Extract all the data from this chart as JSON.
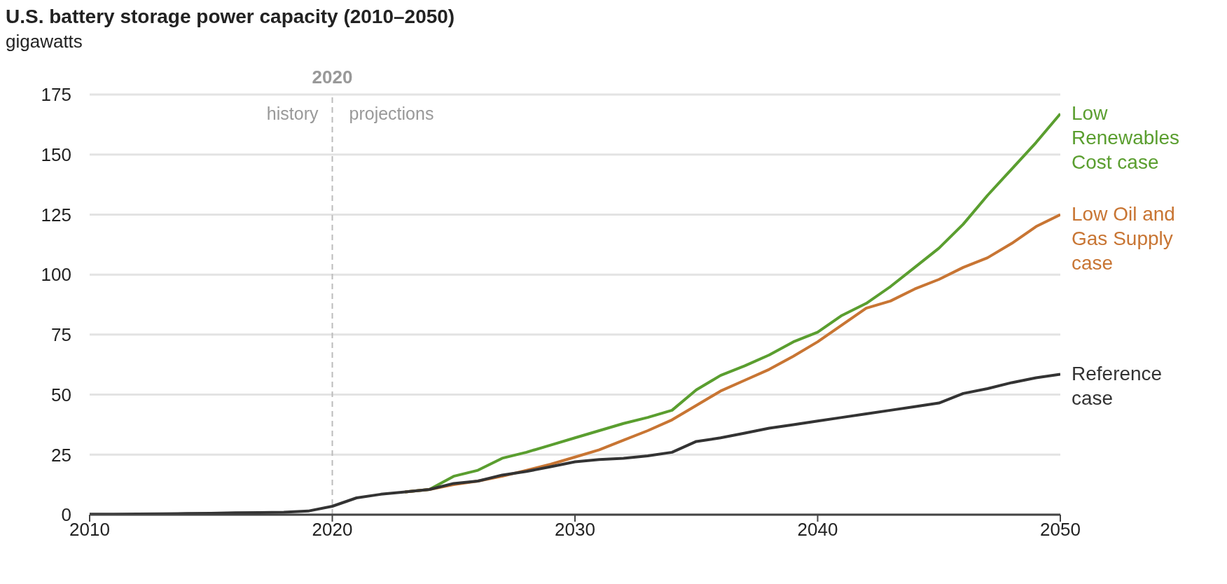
{
  "chart_data": {
    "type": "line",
    "title": "U.S. battery storage power capacity (2010–2050)",
    "ylabel": "gigawatts",
    "x": [
      2010,
      2011,
      2012,
      2013,
      2014,
      2015,
      2016,
      2017,
      2018,
      2019,
      2020,
      2021,
      2022,
      2023,
      2024,
      2025,
      2026,
      2027,
      2028,
      2029,
      2030,
      2031,
      2032,
      2033,
      2034,
      2035,
      2036,
      2037,
      2038,
      2039,
      2040,
      2041,
      2042,
      2043,
      2044,
      2045,
      2046,
      2047,
      2048,
      2049,
      2050
    ],
    "series": [
      {
        "name": "Low Renewables Cost case",
        "color": "#5a9e2f",
        "values": [
          null,
          null,
          null,
          null,
          null,
          null,
          null,
          null,
          null,
          null,
          null,
          null,
          null,
          9.5,
          10.5,
          16,
          18.5,
          23.5,
          26,
          29,
          32,
          35,
          38,
          40.5,
          43.5,
          52,
          58,
          62,
          66.5,
          72,
          76,
          83,
          88,
          95,
          103,
          111,
          121,
          133,
          144,
          155,
          167
        ]
      },
      {
        "name": "Low Oil and Gas Supply case",
        "color": "#c87533",
        "values": [
          null,
          null,
          null,
          null,
          null,
          null,
          null,
          null,
          null,
          null,
          null,
          null,
          null,
          9.5,
          10.5,
          12.5,
          14,
          16,
          18.5,
          21,
          24,
          27,
          31,
          35,
          39.5,
          45.5,
          51.5,
          56,
          60.5,
          66,
          72,
          79,
          86,
          89,
          94,
          98,
          103,
          107,
          113,
          120,
          125
        ]
      },
      {
        "name": "Reference case",
        "color": "#333333",
        "values": [
          0.2,
          0.2,
          0.3,
          0.4,
          0.5,
          0.6,
          0.8,
          0.9,
          1,
          1.5,
          3.5,
          7,
          8.5,
          9.5,
          10.5,
          13,
          14,
          16.5,
          18,
          20,
          22,
          23,
          23.5,
          24.5,
          26,
          30.5,
          32,
          34,
          36,
          37.5,
          39,
          40.5,
          42,
          43.5,
          45,
          46.5,
          50.5,
          52.5,
          55,
          57,
          58.5
        ]
      }
    ],
    "xlim": [
      2010,
      2050
    ],
    "xticks": [
      2010,
      2020,
      2030,
      2040,
      2050
    ],
    "ylim": [
      0,
      175
    ],
    "yticks": [
      0,
      25,
      50,
      75,
      100,
      125,
      150,
      175
    ],
    "grid": "y",
    "legend": false,
    "marker": "none",
    "line_style": "solid",
    "ref_lines": [
      {
        "axis": "x",
        "value": 2020,
        "label": "2020",
        "color": "#bbbbbb",
        "line_style": "dashed"
      }
    ],
    "annotations": [
      "history",
      "projections"
    ]
  }
}
